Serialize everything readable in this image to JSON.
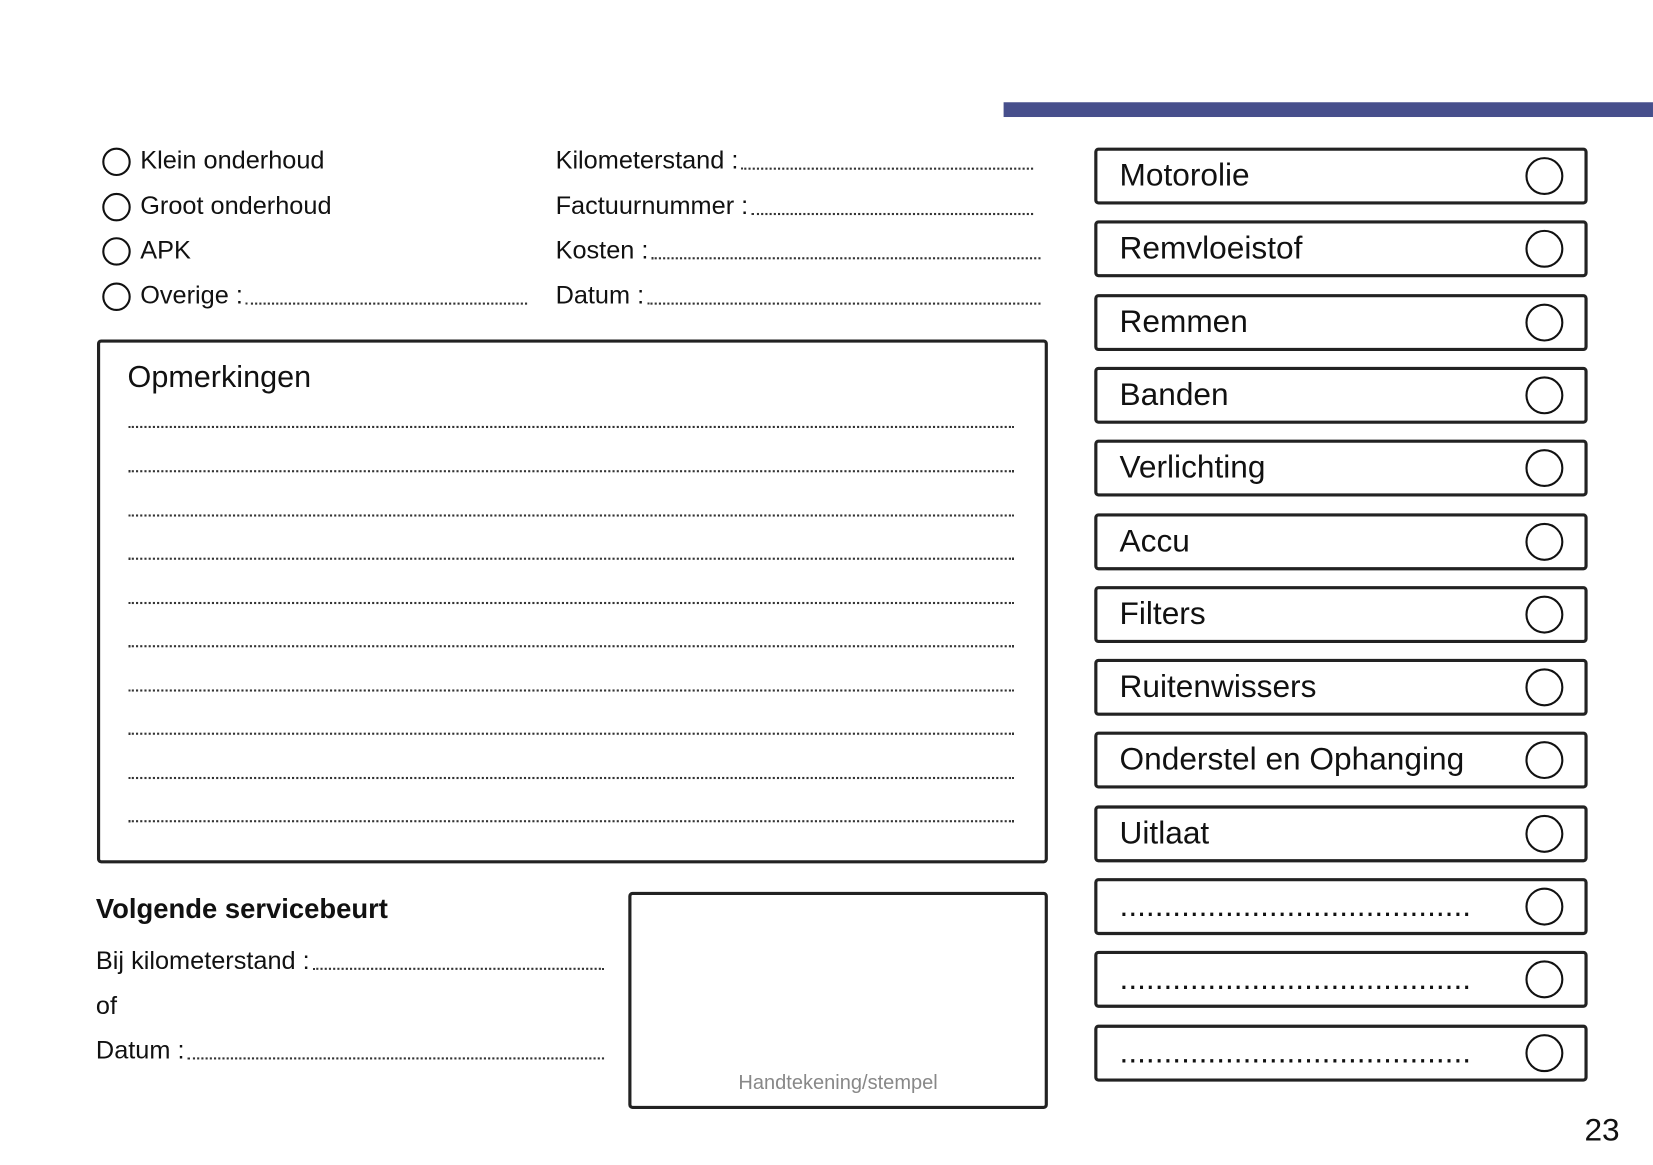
{
  "header": {
    "accent_color": "#474f8c"
  },
  "service_types": [
    {
      "label": "Klein onderhoud"
    },
    {
      "label": "Groot onderhoud"
    },
    {
      "label": "APK"
    },
    {
      "label": "Overige :"
    }
  ],
  "fields": [
    {
      "label": "Kilometerstand :"
    },
    {
      "label": "Factuurnummer :"
    },
    {
      "label": "Kosten :"
    },
    {
      "label": "Datum :"
    }
  ],
  "remarks": {
    "title": "Opmerkingen"
  },
  "next_service": {
    "title": "Volgende servicebeurt",
    "km_label": "Bij kilometerstand :",
    "or_label": "of",
    "date_label": "Datum :"
  },
  "signature": {
    "caption": "Handtekening/stempel"
  },
  "checklist": [
    {
      "label": "Motorolie"
    },
    {
      "label": "Remvloeistof"
    },
    {
      "label": "Remmen"
    },
    {
      "label": "Banden"
    },
    {
      "label": "Verlichting"
    },
    {
      "label": "Accu"
    },
    {
      "label": "Filters"
    },
    {
      "label": "Ruitenwissers"
    },
    {
      "label": "Onderstel en Ophanging"
    },
    {
      "label": "Uitlaat"
    },
    {
      "label": "........................................"
    },
    {
      "label": "........................................"
    },
    {
      "label": "........................................"
    }
  ],
  "page_number": "23"
}
